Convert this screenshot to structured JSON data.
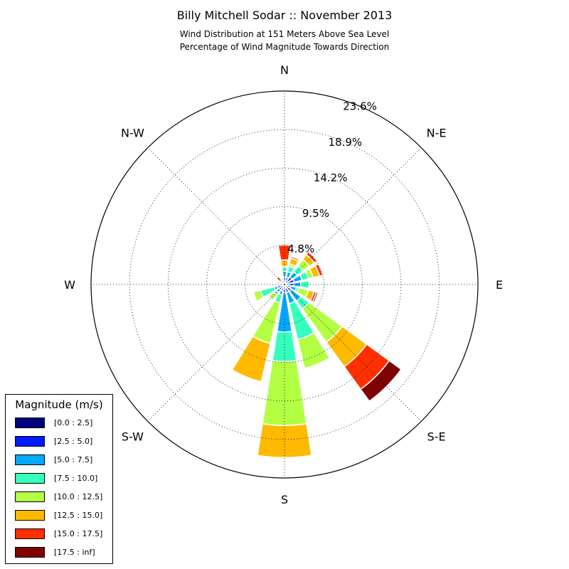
{
  "chart_data": {
    "type": "wind-rose",
    "title": "Billy Mitchell Sodar :: November 2013",
    "subtitle_line1": "Wind Distribution at 151 Meters Above Sea Level",
    "subtitle_line2": "Percentage of Wind Magnitude Towards Direction",
    "direction_labels": [
      "N",
      "N-E",
      "E",
      "S-E",
      "S",
      "S-W",
      "W",
      "N-W"
    ],
    "radial_ticks": [
      "4.8%",
      "9.5%",
      "14.2%",
      "18.9%",
      "23.6%"
    ],
    "radial_max": 23.6,
    "grid": true,
    "legend_title": "Magnitude (m/s)",
    "legend_location": "lower-left",
    "bins": [
      {
        "label": "[0.0 : 2.5]",
        "color": "#00007f"
      },
      {
        "label": "[2.5 : 5.0]",
        "color": "#0019ff"
      },
      {
        "label": "[5.0 : 7.5]",
        "color": "#00a9ff"
      },
      {
        "label": "[7.5 : 10.0]",
        "color": "#35ffbd"
      },
      {
        "label": "[10.0 : 12.5]",
        "color": "#b2ff43"
      },
      {
        "label": "[12.5 : 15.0]",
        "color": "#ffba00"
      },
      {
        "label": "[15.0 : 17.5]",
        "color": "#ff3000"
      },
      {
        "label": "[17.5 : inf]",
        "color": "#7f0000"
      }
    ],
    "directions_deg": [
      0,
      22.5,
      45,
      67.5,
      90,
      112.5,
      135,
      157.5,
      180,
      202.5,
      225,
      247.5,
      270,
      292.5,
      315,
      337.5
    ],
    "cumulative_percent": [
      [
        0.3,
        0.9,
        1.6,
        2.1,
        2.2,
        3.0,
        4.8,
        4.8
      ],
      [
        0.3,
        0.9,
        1.6,
        2.3,
        2.6,
        3.3,
        3.5,
        3.5
      ],
      [
        0.3,
        1.1,
        1.9,
        2.8,
        3.8,
        4.5,
        4.9,
        4.9
      ],
      [
        0.3,
        1.2,
        2.2,
        3.0,
        3.6,
        4.4,
        4.8,
        4.8
      ],
      [
        0.3,
        1.1,
        2.0,
        3.0,
        3.0,
        3.0,
        3.0,
        3.0
      ],
      [
        0.3,
        0.8,
        1.5,
        1.8,
        3.0,
        3.7,
        4.0,
        4.2
      ],
      [
        0.3,
        1.0,
        2.5,
        3.7,
        8.7,
        12.4,
        15.8,
        17.6
      ],
      [
        0.3,
        1.0,
        2.4,
        6.9,
        10.5,
        10.5,
        10.5,
        10.5
      ],
      [
        0.3,
        1.0,
        5.8,
        9.4,
        17.2,
        21.1,
        21.1,
        21.1
      ],
      [
        0.3,
        0.8,
        1.3,
        2.3,
        7.4,
        12.2,
        12.2,
        12.2
      ],
      [
        0.3,
        0.8,
        1.2,
        1.6,
        2.4,
        2.4,
        2.4,
        2.4
      ],
      [
        0.3,
        0.9,
        1.3,
        3.0,
        3.9,
        3.9,
        3.9,
        3.9
      ],
      [
        0.3,
        0.6,
        0.8,
        0.8,
        0.8,
        0.8,
        0.8,
        0.8
      ],
      [
        0.3,
        0.5,
        0.7,
        0.9,
        0.9,
        0.9,
        0.9,
        0.9
      ],
      [
        0.3,
        0.4,
        0.5,
        0.6,
        0.6,
        0.6,
        1.2,
        1.2
      ],
      [
        0.3,
        0.6,
        0.8,
        0.9,
        1.0,
        1.0,
        1.0,
        1.0
      ]
    ]
  }
}
